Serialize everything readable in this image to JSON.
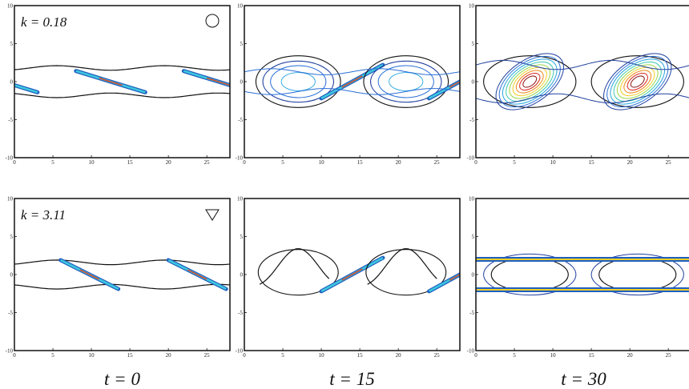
{
  "chart_data": [
    {
      "type": "contour",
      "xlim": [
        0,
        28
      ],
      "ylim": [
        -10,
        10
      ],
      "xticks": [
        0,
        5,
        10,
        15,
        20,
        25
      ],
      "yticks": [
        -10,
        -5,
        0,
        5,
        10
      ],
      "annotation": "k = 0.18"
    },
    {
      "type": "contour",
      "xlim": [
        0,
        28
      ],
      "ylim": [
        -10,
        10
      ],
      "xticks": [
        0,
        5,
        10,
        15,
        20,
        25
      ],
      "yticks": [
        -10,
        -5,
        0,
        5,
        10
      ]
    },
    {
      "type": "contour",
      "xlim": [
        0,
        28
      ],
      "ylim": [
        -10,
        10
      ],
      "xticks": [
        0,
        5,
        10,
        15,
        20,
        25
      ],
      "yticks": [
        -10,
        -5,
        0,
        5,
        10
      ]
    },
    {
      "type": "contour",
      "xlim": [
        0,
        28
      ],
      "ylim": [
        -10,
        10
      ],
      "xticks": [
        0,
        5,
        10,
        15,
        20,
        25
      ],
      "yticks": [
        -10,
        -5,
        0,
        5,
        10
      ],
      "annotation": "k = 3.11",
      "xlabel": "t = 0"
    },
    {
      "type": "contour",
      "xlim": [
        0,
        28
      ],
      "ylim": [
        -10,
        10
      ],
      "xticks": [
        0,
        5,
        10,
        15,
        20,
        25
      ],
      "yticks": [
        -10,
        -5,
        0,
        5,
        10
      ],
      "xlabel": "t = 15"
    },
    {
      "type": "contour",
      "xlim": [
        0,
        28
      ],
      "ylim": [
        -10,
        10
      ],
      "xticks": [
        0,
        5,
        10,
        15,
        20,
        25
      ],
      "yticks": [
        -10,
        -5,
        0,
        5,
        10
      ],
      "xlabel": "t = 30"
    }
  ]
}
